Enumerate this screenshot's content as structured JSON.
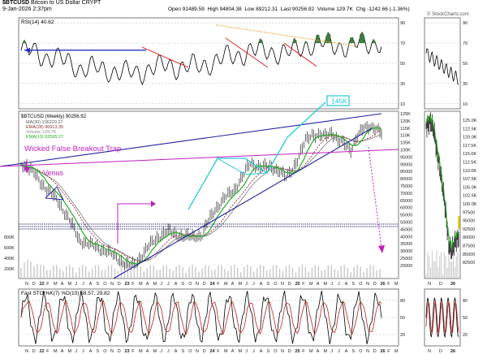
{
  "header": {
    "symbol": "$BTCUSD",
    "name": "Bitcoin to US Dollar",
    "exchange": "CRYPT",
    "date": "9-Jan-2026 2:37pm",
    "open_label": "Open",
    "open": "91489.59",
    "high_label": "High",
    "high": "94804.38",
    "low_label": "Low",
    "low": "89212.31",
    "last_label": "Last",
    "last": "90256.92",
    "volume_label": "Volume",
    "volume": "129.7K",
    "chg_label": "Chg",
    "chg": "-1242.66 (-1.36%)",
    "watermark": "© StockCharts.com"
  },
  "rsi_panel": {
    "label": "RSI(14) 40.62",
    "ticks": [
      "90",
      "70",
      "50",
      "30",
      "10"
    ]
  },
  "price_panel": {
    "legend": [
      "$BTCUSD (Weekly) 90256.92",
      "MA(30) 106229.27",
      "EMA(28) 96913.35",
      "Volume 129.7K",
      "EMA(13) 92595.27"
    ],
    "annotations": {
      "false_breakout": "Wicked False Breakout Trap",
      "venus": "Venus",
      "target": "145K"
    },
    "weekly_ticks": [
      "125K",
      "120K",
      "115K",
      "110K",
      "105K",
      "100K",
      "95000",
      "90000",
      "85000",
      "80000",
      "75000",
      "70000",
      "65000",
      "60000",
      "55000",
      "50000",
      "45000",
      "40000",
      "35000",
      "30000",
      "25000",
      "20000"
    ],
    "volume_ticks": [
      "800K",
      "600K",
      "400K",
      "200K"
    ],
    "daily_ticks": [
      "125.0K",
      "122.5K",
      "120.0K",
      "117.5K",
      "115.0K",
      "112.5K",
      "110.0K",
      "107.5K",
      "105.0K",
      "102.5K",
      "100.0K",
      "97500",
      "95000",
      "92500",
      "90000",
      "87500",
      "85000",
      "82500"
    ]
  },
  "x_axis": {
    "weekly": [
      "N",
      "D",
      "22",
      "F",
      "M",
      "A",
      "M",
      "J",
      "J",
      "A",
      "S",
      "O",
      "N",
      "D",
      "23",
      "F",
      "M",
      "A",
      "M",
      "J",
      "J",
      "A",
      "S",
      "O",
      "N",
      "D",
      "24",
      "F",
      "M",
      "A",
      "M",
      "J",
      "J",
      "A",
      "S",
      "O",
      "N",
      "D",
      "25",
      "F",
      "M",
      "A",
      "M",
      "J",
      "J",
      "A",
      "S",
      "O",
      "N",
      "D",
      "26",
      "F",
      "M"
    ],
    "daily": [
      "N",
      "D",
      "26"
    ]
  },
  "sto_panel": {
    "label": "Fast STO %K(7) %D(10) 58.57, 29.82",
    "ticks": [
      "80",
      "50",
      "20"
    ]
  },
  "colors": {
    "price": "#000000",
    "ema13": "#22aa22",
    "ema28": "#8b2f2f",
    "ma30": "#7a7a7a",
    "volume": "#c8c8c8",
    "rsi_fill": "#3d7a3d",
    "trend_blue": "#2020a0",
    "annotation": "#c020c0",
    "target": "#20c8d8",
    "red_line": "#e02020",
    "orange_line": "#f0a030",
    "navy_dots": "#101060"
  }
}
